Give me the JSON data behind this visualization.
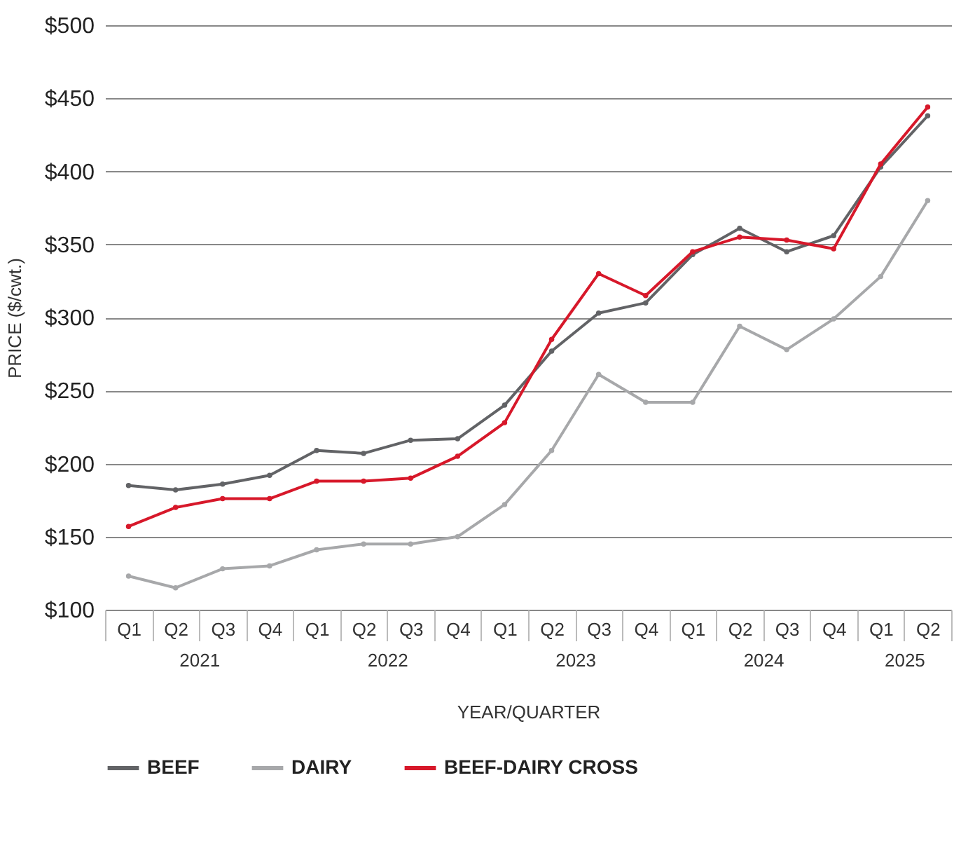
{
  "chart_data": {
    "type": "line",
    "categories": [
      "Q1",
      "Q2",
      "Q3",
      "Q4",
      "Q1",
      "Q2",
      "Q3",
      "Q4",
      "Q1",
      "Q2",
      "Q3",
      "Q4",
      "Q1",
      "Q2",
      "Q3",
      "Q4",
      "Q1",
      "Q2"
    ],
    "series": [
      {
        "name": "BEEF",
        "color": "#626366",
        "values": [
          185,
          182,
          186,
          192,
          209,
          207,
          216,
          217,
          240,
          277,
          303,
          310,
          343,
          361,
          345,
          356,
          403,
          438
        ]
      },
      {
        "name": "DAIRY",
        "color": "#a7a8aa",
        "values": [
          123,
          115,
          128,
          130,
          141,
          145,
          145,
          150,
          172,
          209,
          261,
          242,
          242,
          294,
          278,
          299,
          328,
          380
        ]
      },
      {
        "name": "BEEF-DAIRY CROSS",
        "color": "#d7182a",
        "values": [
          157,
          170,
          176,
          176,
          188,
          188,
          190,
          205,
          228,
          285,
          330,
          315,
          345,
          355,
          353,
          347,
          405,
          444
        ]
      }
    ],
    "xlabel": "YEAR/QUARTER",
    "ylabel": "PRICE ($/cwt.)",
    "annotations": [
      "2021",
      "2022",
      "2023",
      "2024",
      "2025"
    ],
    "ylim": [
      100,
      500
    ],
    "yticks": [
      {
        "value": 100,
        "label": "$100"
      },
      {
        "value": 150,
        "label": "$150"
      },
      {
        "value": 200,
        "label": "$200"
      },
      {
        "value": 250,
        "label": "$250"
      },
      {
        "value": 300,
        "label": "$300"
      },
      {
        "value": 350,
        "label": "$350"
      },
      {
        "value": 400,
        "label": "$400"
      },
      {
        "value": 450,
        "label": "$450"
      },
      {
        "value": 500,
        "label": "$500"
      }
    ],
    "grid": "y",
    "legend": "bottom",
    "marker": "circle",
    "line_style": "solid"
  }
}
